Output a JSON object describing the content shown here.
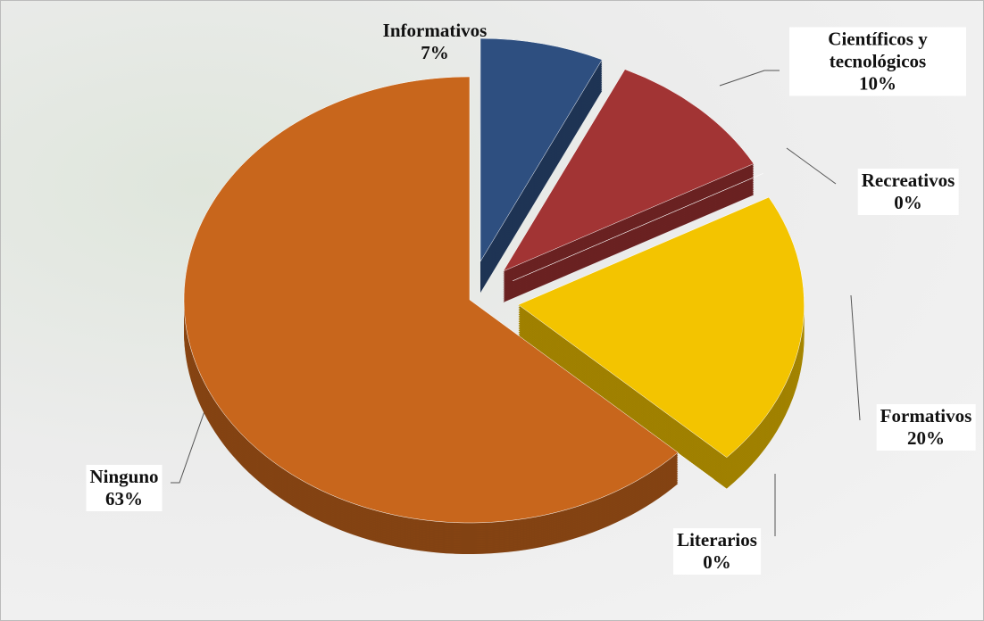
{
  "chart_data": {
    "type": "pie",
    "categories": [
      "Informativos",
      "Científicos y tecnológicos",
      "Recreativos",
      "Formativos",
      "Literarios",
      "Ninguno"
    ],
    "values": [
      7,
      10,
      0,
      20,
      0,
      63
    ],
    "value_labels": [
      "7%",
      "10%",
      "0%",
      "20%",
      "0%",
      "63%"
    ],
    "colors": [
      "#2e4f80",
      "#a23434",
      "#7d9b3c",
      "#f3c400",
      "#245d6c",
      "#c8661c"
    ]
  }
}
